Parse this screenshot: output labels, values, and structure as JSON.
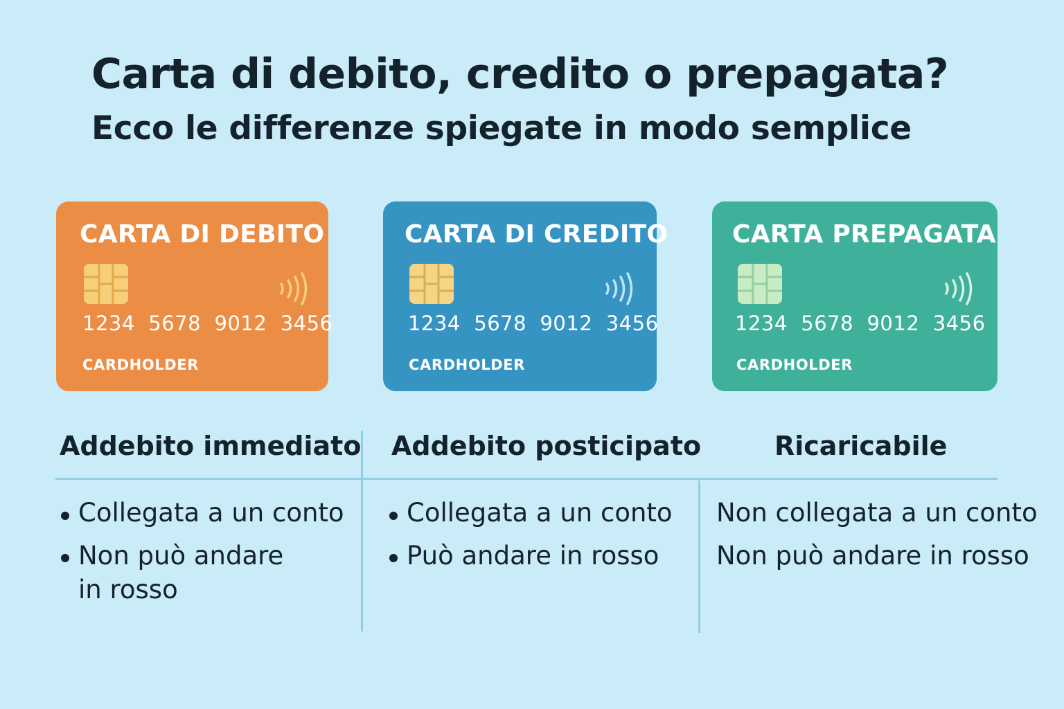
{
  "header": {
    "title": "Carta di debito, credito o prepagata?",
    "subtitle": "Ecco le differenze spiegate in modo semplice"
  },
  "colors": {
    "background": "#c9ecf8",
    "debit_card": "#ec8d45",
    "credit_card": "#3594c2",
    "prepaid_card": "#3fb19a",
    "text": "#14222c",
    "divider": "#93cde4"
  },
  "cards": [
    {
      "name": "CARTA DI DEBITO",
      "number": "1234  5678  9012  3456",
      "holder": "CARDHOLDER",
      "icon_chip": "chip-icon",
      "icon_contactless": "contactless-icon"
    },
    {
      "name": "CARTA DI CREDITO",
      "number": "1234  5678  9012  3456",
      "holder": "CARDHOLDER",
      "icon_chip": "chip-icon",
      "icon_contactless": "contactless-icon"
    },
    {
      "name": "CARTA PREPAGATA",
      "number": "1234  5678  9012  3456",
      "holder": "CARDHOLDER",
      "icon_chip": "chip-icon",
      "icon_contactless": "contactless-icon"
    }
  ],
  "columns": [
    {
      "header": "Addebito immediato",
      "items": [
        "Collegata a un conto",
        "Non può andare",
        "in rosso"
      ]
    },
    {
      "header": "Addebito posticipato",
      "items": [
        "Collegata a un conto",
        "Può andare in rosso"
      ]
    },
    {
      "header": "Ricaricabile",
      "items": [
        "Non collegata a un conto",
        "Non può andare in rosso"
      ]
    }
  ]
}
